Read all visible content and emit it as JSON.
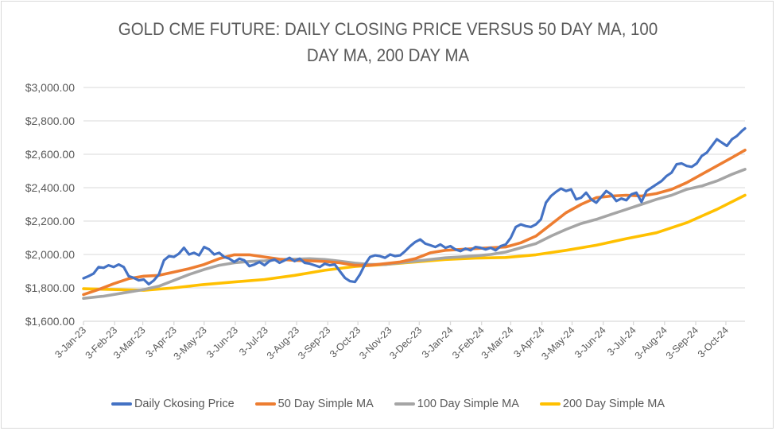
{
  "chart_data": {
    "type": "line",
    "title_lines": [
      "GOLD CME FUTURE: DAILY CLOSING PRICE VERSUS 50 DAY MA, 100",
      "DAY MA, 200 DAY MA"
    ],
    "xlabel": "",
    "ylabel": "",
    "ylim": [
      1600,
      3000
    ],
    "y_ticks": [
      1600,
      1800,
      2000,
      2200,
      2400,
      2600,
      2800,
      3000
    ],
    "y_tick_labels": [
      "$1,600.00",
      "$1,800.00",
      "$2,000.00",
      "$2,200.00",
      "$2,400.00",
      "$2,600.00",
      "$2,800.00",
      "$3,000.00"
    ],
    "x_start_date": "2023-01-03",
    "x_end_day": 658,
    "x_ticks_days": [
      0,
      31,
      59,
      90,
      120,
      151,
      181,
      212,
      243,
      273,
      304,
      334,
      365,
      396,
      425,
      456,
      486,
      517,
      547,
      578,
      609,
      639
    ],
    "x_tick_labels": [
      "3-Jan-23",
      "3-Feb-23",
      "3-Mar-23",
      "3-Apr-23",
      "3-May-23",
      "3-Jun-23",
      "3-Jul-23",
      "3-Aug-23",
      "3-Sep-23",
      "3-Oct-23",
      "3-Nov-23",
      "3-Dec-23",
      "3-Jan-24",
      "3-Feb-24",
      "3-Mar-24",
      "3-Apr-24",
      "3-May-24",
      "3-Jun-24",
      "3-Jul-24",
      "3-Aug-24",
      "3-Sep-24",
      "3-Oct-24"
    ],
    "grid": true,
    "legend_position": "bottom",
    "series": [
      {
        "name": "Daily Ckosing Price",
        "color": "#4472C4",
        "points_day_value": [
          [
            0,
            1857
          ],
          [
            5,
            1870
          ],
          [
            10,
            1885
          ],
          [
            15,
            1925
          ],
          [
            20,
            1920
          ],
          [
            25,
            1935
          ],
          [
            30,
            1925
          ],
          [
            35,
            1940
          ],
          [
            40,
            1925
          ],
          [
            45,
            1870
          ],
          [
            50,
            1860
          ],
          [
            55,
            1845
          ],
          [
            60,
            1850
          ],
          [
            65,
            1822
          ],
          [
            70,
            1845
          ],
          [
            75,
            1880
          ],
          [
            80,
            1965
          ],
          [
            85,
            1990
          ],
          [
            90,
            1985
          ],
          [
            95,
            2005
          ],
          [
            100,
            2040
          ],
          [
            105,
            2000
          ],
          [
            110,
            2010
          ],
          [
            115,
            1995
          ],
          [
            120,
            2045
          ],
          [
            125,
            2030
          ],
          [
            130,
            2000
          ],
          [
            135,
            2010
          ],
          [
            140,
            1985
          ],
          [
            145,
            1975
          ],
          [
            150,
            1955
          ],
          [
            155,
            1975
          ],
          [
            160,
            1965
          ],
          [
            165,
            1930
          ],
          [
            170,
            1940
          ],
          [
            175,
            1955
          ],
          [
            180,
            1935
          ],
          [
            185,
            1960
          ],
          [
            190,
            1970
          ],
          [
            195,
            1950
          ],
          [
            200,
            1965
          ],
          [
            205,
            1980
          ],
          [
            210,
            1960
          ],
          [
            215,
            1975
          ],
          [
            220,
            1950
          ],
          [
            225,
            1945
          ],
          [
            230,
            1935
          ],
          [
            235,
            1925
          ],
          [
            240,
            1945
          ],
          [
            245,
            1935
          ],
          [
            250,
            1940
          ],
          [
            255,
            1900
          ],
          [
            260,
            1860
          ],
          [
            265,
            1840
          ],
          [
            270,
            1835
          ],
          [
            275,
            1880
          ],
          [
            280,
            1940
          ],
          [
            285,
            1985
          ],
          [
            290,
            1995
          ],
          [
            295,
            1990
          ],
          [
            300,
            1980
          ],
          [
            305,
            2000
          ],
          [
            310,
            1990
          ],
          [
            315,
            1995
          ],
          [
            320,
            2020
          ],
          [
            325,
            2050
          ],
          [
            330,
            2075
          ],
          [
            335,
            2090
          ],
          [
            340,
            2065
          ],
          [
            345,
            2055
          ],
          [
            350,
            2045
          ],
          [
            355,
            2060
          ],
          [
            360,
            2040
          ],
          [
            365,
            2050
          ],
          [
            370,
            2030
          ],
          [
            375,
            2020
          ],
          [
            380,
            2035
          ],
          [
            385,
            2025
          ],
          [
            390,
            2045
          ],
          [
            395,
            2040
          ],
          [
            400,
            2030
          ],
          [
            405,
            2040
          ],
          [
            410,
            2025
          ],
          [
            415,
            2050
          ],
          [
            420,
            2060
          ],
          [
            425,
            2100
          ],
          [
            430,
            2165
          ],
          [
            435,
            2180
          ],
          [
            440,
            2170
          ],
          [
            445,
            2165
          ],
          [
            450,
            2180
          ],
          [
            455,
            2210
          ],
          [
            460,
            2310
          ],
          [
            465,
            2350
          ],
          [
            470,
            2375
          ],
          [
            475,
            2395
          ],
          [
            480,
            2380
          ],
          [
            485,
            2390
          ],
          [
            490,
            2330
          ],
          [
            495,
            2340
          ],
          [
            500,
            2370
          ],
          [
            505,
            2330
          ],
          [
            510,
            2310
          ],
          [
            515,
            2345
          ],
          [
            520,
            2380
          ],
          [
            525,
            2360
          ],
          [
            530,
            2320
          ],
          [
            535,
            2335
          ],
          [
            540,
            2325
          ],
          [
            545,
            2360
          ],
          [
            550,
            2370
          ],
          [
            555,
            2315
          ],
          [
            560,
            2380
          ],
          [
            565,
            2400
          ],
          [
            570,
            2420
          ],
          [
            575,
            2440
          ],
          [
            580,
            2470
          ],
          [
            585,
            2490
          ],
          [
            590,
            2540
          ],
          [
            595,
            2545
          ],
          [
            600,
            2530
          ],
          [
            605,
            2525
          ],
          [
            610,
            2545
          ],
          [
            615,
            2590
          ],
          [
            620,
            2610
          ],
          [
            625,
            2650
          ],
          [
            630,
            2690
          ],
          [
            635,
            2670
          ],
          [
            640,
            2650
          ],
          [
            645,
            2690
          ],
          [
            650,
            2710
          ],
          [
            655,
            2740
          ],
          [
            658,
            2755
          ]
        ]
      },
      {
        "name": "50 Day Simple MA",
        "color": "#ED7D31",
        "points_day_value": [
          [
            0,
            1760
          ],
          [
            15,
            1790
          ],
          [
            30,
            1825
          ],
          [
            45,
            1855
          ],
          [
            60,
            1870
          ],
          [
            75,
            1875
          ],
          [
            90,
            1895
          ],
          [
            105,
            1915
          ],
          [
            120,
            1940
          ],
          [
            135,
            1975
          ],
          [
            150,
            1998
          ],
          [
            165,
            1998
          ],
          [
            180,
            1985
          ],
          [
            195,
            1972
          ],
          [
            210,
            1965
          ],
          [
            225,
            1962
          ],
          [
            240,
            1958
          ],
          [
            255,
            1950
          ],
          [
            270,
            1935
          ],
          [
            285,
            1935
          ],
          [
            300,
            1945
          ],
          [
            315,
            1955
          ],
          [
            330,
            1975
          ],
          [
            345,
            2010
          ],
          [
            360,
            2025
          ],
          [
            375,
            2030
          ],
          [
            390,
            2035
          ],
          [
            405,
            2040
          ],
          [
            420,
            2045
          ],
          [
            435,
            2070
          ],
          [
            450,
            2110
          ],
          [
            465,
            2180
          ],
          [
            480,
            2250
          ],
          [
            495,
            2300
          ],
          [
            510,
            2340
          ],
          [
            525,
            2350
          ],
          [
            540,
            2355
          ],
          [
            555,
            2350
          ],
          [
            570,
            2365
          ],
          [
            585,
            2390
          ],
          [
            600,
            2430
          ],
          [
            615,
            2480
          ],
          [
            630,
            2530
          ],
          [
            645,
            2580
          ],
          [
            658,
            2625
          ]
        ]
      },
      {
        "name": "100 Day Simple MA",
        "color": "#A5A5A5",
        "points_day_value": [
          [
            0,
            1737
          ],
          [
            20,
            1750
          ],
          [
            40,
            1770
          ],
          [
            60,
            1790
          ],
          [
            75,
            1810
          ],
          [
            90,
            1845
          ],
          [
            105,
            1880
          ],
          [
            120,
            1910
          ],
          [
            135,
            1935
          ],
          [
            150,
            1950
          ],
          [
            165,
            1958
          ],
          [
            180,
            1962
          ],
          [
            195,
            1970
          ],
          [
            210,
            1972
          ],
          [
            225,
            1975
          ],
          [
            240,
            1970
          ],
          [
            255,
            1960
          ],
          [
            270,
            1948
          ],
          [
            285,
            1940
          ],
          [
            300,
            1940
          ],
          [
            315,
            1950
          ],
          [
            330,
            1960
          ],
          [
            345,
            1970
          ],
          [
            360,
            1980
          ],
          [
            375,
            1985
          ],
          [
            390,
            1992
          ],
          [
            405,
            2000
          ],
          [
            420,
            2015
          ],
          [
            435,
            2040
          ],
          [
            450,
            2065
          ],
          [
            465,
            2110
          ],
          [
            480,
            2150
          ],
          [
            495,
            2185
          ],
          [
            510,
            2210
          ],
          [
            525,
            2240
          ],
          [
            540,
            2270
          ],
          [
            555,
            2300
          ],
          [
            570,
            2330
          ],
          [
            585,
            2355
          ],
          [
            600,
            2390
          ],
          [
            615,
            2410
          ],
          [
            630,
            2440
          ],
          [
            645,
            2480
          ],
          [
            658,
            2510
          ]
        ]
      },
      {
        "name": "200 Day Simple MA",
        "color": "#FFC000",
        "points_day_value": [
          [
            0,
            1795
          ],
          [
            30,
            1790
          ],
          [
            60,
            1785
          ],
          [
            90,
            1800
          ],
          [
            120,
            1820
          ],
          [
            150,
            1835
          ],
          [
            180,
            1850
          ],
          [
            210,
            1875
          ],
          [
            240,
            1905
          ],
          [
            270,
            1928
          ],
          [
            300,
            1940
          ],
          [
            330,
            1955
          ],
          [
            360,
            1970
          ],
          [
            390,
            1978
          ],
          [
            420,
            1982
          ],
          [
            450,
            1998
          ],
          [
            480,
            2025
          ],
          [
            510,
            2055
          ],
          [
            540,
            2095
          ],
          [
            570,
            2130
          ],
          [
            600,
            2190
          ],
          [
            630,
            2270
          ],
          [
            658,
            2355
          ]
        ]
      }
    ]
  }
}
